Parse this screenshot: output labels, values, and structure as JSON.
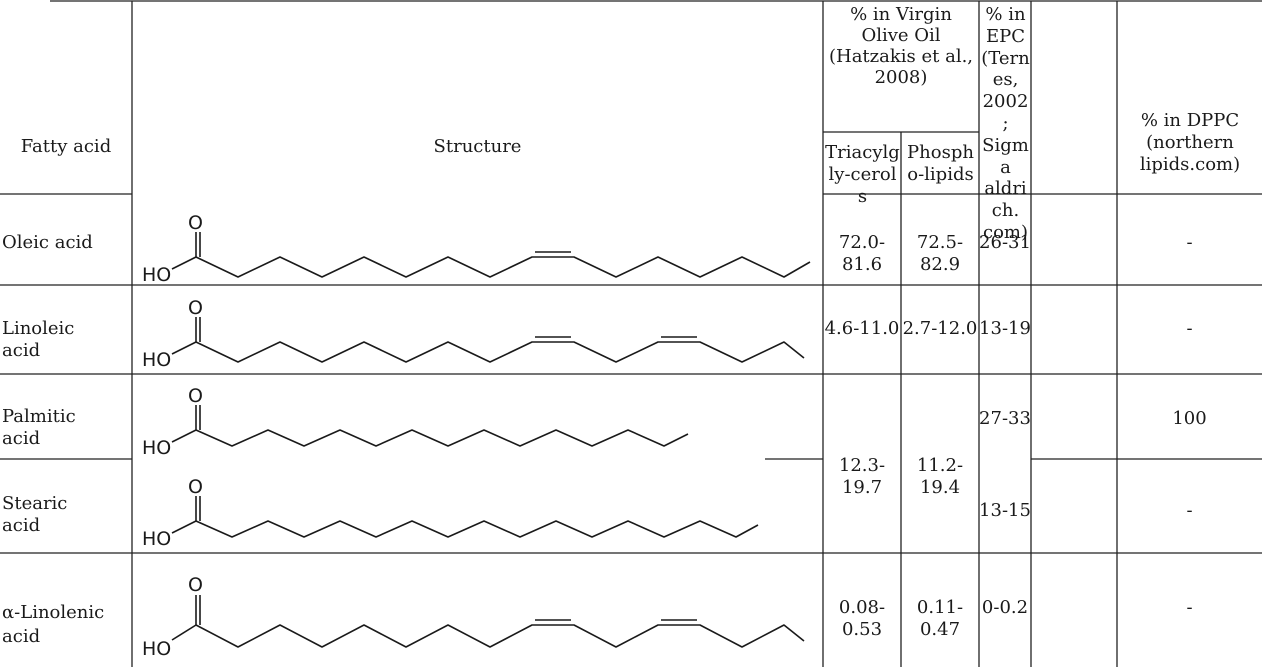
{
  "table": {
    "header": {
      "fatty_acid": "Fatty acid",
      "structure": "Structure",
      "vo_group": "% in Virgin Olive Oil (Hatzakis et al., 2008)",
      "tag": "Triacylgly-cerols",
      "pl": "Phospho-lipids",
      "epc": "% in EPC (Ternes, 2002; Sigma aldrich. com)",
      "dppc": "% in DPPC (northern lipids.com)"
    },
    "rows": [
      {
        "name": "Oleic acid",
        "tag": "72.0-81.6",
        "pl": "72.5-82.9",
        "epc": "26-31",
        "dppc": "-"
      },
      {
        "name": "Linoleic acid",
        "tag": "4.6-11.0",
        "pl": "2.7-12.0",
        "epc": "13-19",
        "dppc": "-"
      },
      {
        "name": "Palmitic acid",
        "tag": "12.3-19.7",
        "pl": "11.2-19.4",
        "epc": "27-33",
        "dppc": "100"
      },
      {
        "name": "Stearic acid",
        "epc": "13-15",
        "dppc": "-"
      },
      {
        "name": "α-Linolenic acid",
        "tag": "0.08-0.53",
        "pl": "0.11-0.47",
        "epc": "0-0.2",
        "dppc": "-"
      }
    ],
    "atoms": {
      "oxygen": "O",
      "hydroxyl": "HO"
    }
  }
}
